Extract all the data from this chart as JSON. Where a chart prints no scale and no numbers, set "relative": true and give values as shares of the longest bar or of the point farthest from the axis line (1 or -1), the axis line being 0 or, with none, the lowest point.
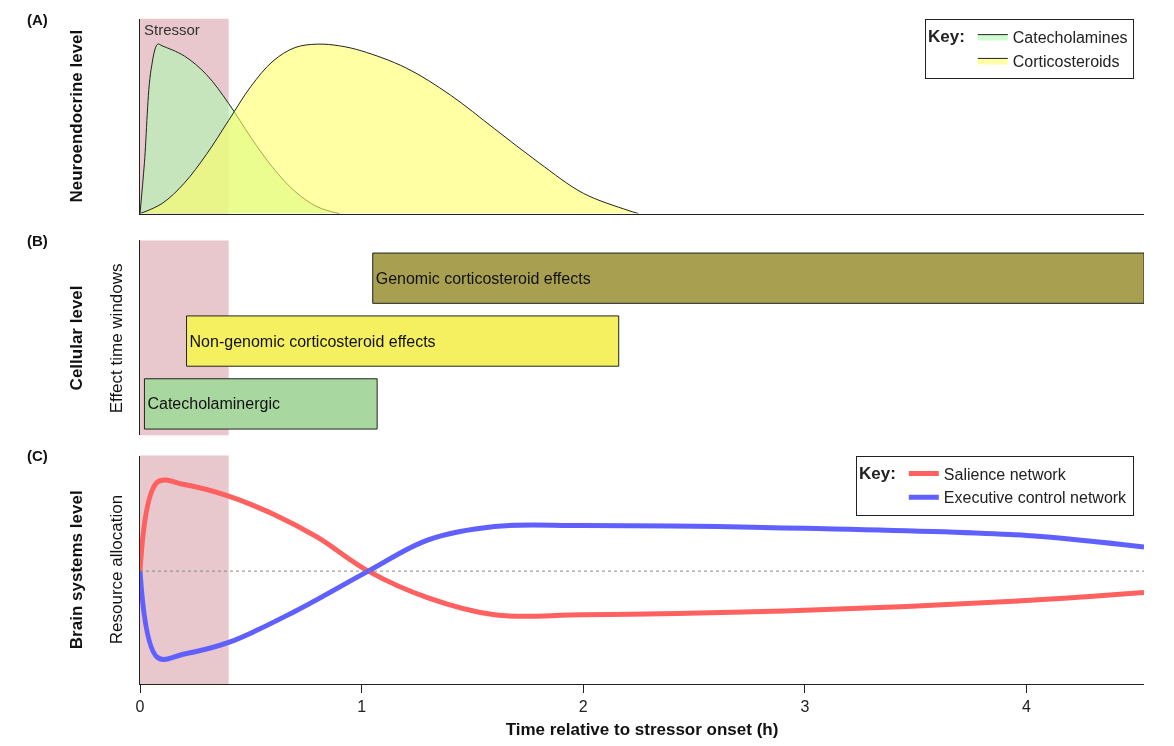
{
  "chart_data": [
    {
      "type": "area",
      "relative": true,
      "ylabel": "Neuroendocrine level",
      "legend_title": "Key:",
      "legend": "top right",
      "tick_labels": false,
      "xlim": [
        0,
        4.53
      ],
      "xticks": [
        0,
        1,
        2,
        3,
        4
      ],
      "annotations": [
        "(A)"
      ],
      "bands": [
        {
          "axis": "x",
          "from": 0,
          "to": 0.4,
          "label": "Stressor",
          "color": "#e8c8cc"
        }
      ],
      "series": [
        {
          "name": "Catecholamines",
          "color": "#b0f8b0",
          "x": [
            0,
            0.02,
            0.05,
            0.08,
            0.1,
            0.2,
            0.3,
            0.4,
            0.5,
            0.6,
            0.7,
            0.8,
            0.9
          ],
          "values": [
            0,
            0.3,
            0.85,
            1.0,
            0.99,
            0.93,
            0.82,
            0.65,
            0.45,
            0.27,
            0.13,
            0.04,
            0
          ]
        },
        {
          "name": "Corticosteroids",
          "color": "#ffff66",
          "x": [
            0,
            0.1,
            0.2,
            0.3,
            0.4,
            0.5,
            0.6,
            0.7,
            0.8,
            0.9,
            1.0,
            1.2,
            1.4,
            1.6,
            1.8,
            2.0,
            2.2,
            2.25
          ],
          "values": [
            0,
            0.06,
            0.18,
            0.35,
            0.55,
            0.75,
            0.9,
            0.98,
            1.0,
            0.99,
            0.96,
            0.86,
            0.7,
            0.5,
            0.3,
            0.12,
            0.02,
            0
          ]
        }
      ]
    },
    {
      "type": "bar",
      "orientation": "horizontal",
      "ylabel": "Cellular level",
      "tick_labels": false,
      "xlim": [
        0,
        4.53
      ],
      "xticks": [
        0,
        1,
        2,
        3,
        4
      ],
      "annotations": [
        "(B)",
        "Effect time windows"
      ],
      "bands": [
        {
          "axis": "x",
          "from": 0,
          "to": 0.4,
          "color": "#e8c8cc"
        }
      ],
      "categories": [
        "Genomic corticosteroid effects",
        "Non-genomic corticosteroid effects",
        "Catecholaminergic"
      ],
      "base": [
        1.05,
        0.21,
        0.02
      ],
      "values": [
        3.48,
        1.95,
        1.05
      ],
      "colors": [
        "#a8a050",
        "#f5f060",
        "#a8d8a0"
      ]
    },
    {
      "type": "line",
      "relative": true,
      "ylabel": "Brain systems level",
      "xlabel": "Time relative to stressor onset (h)",
      "legend_title": "Key:",
      "legend": "top right",
      "tick_labels": "x",
      "xlim": [
        0,
        4.53
      ],
      "xticks": [
        0,
        1,
        2,
        3,
        4
      ],
      "annotations": [
        "(C)",
        "Resource allocation"
      ],
      "bands": [
        {
          "axis": "x",
          "from": 0,
          "to": 0.4,
          "color": "#e8c8cc"
        }
      ],
      "ref_lines": [
        {
          "axis": "y",
          "value": 0,
          "color": "#888888",
          "line_style": "dotted"
        }
      ],
      "series": [
        {
          "name": "Salience network",
          "color": "#ff6060",
          "x": [
            0,
            0.08,
            0.2,
            0.4,
            0.6,
            0.8,
            1.03,
            1.3,
            1.6,
            2,
            3,
            4,
            4.53
          ],
          "values": [
            0,
            1.0,
            0.97,
            0.84,
            0.64,
            0.38,
            0,
            -0.3,
            -0.49,
            -0.49,
            -0.44,
            -0.33,
            -0.24
          ]
        },
        {
          "name": "Executive control network",
          "color": "#6060ff",
          "x": [
            0,
            0.08,
            0.2,
            0.4,
            0.7,
            1.03,
            1.3,
            1.6,
            2,
            3,
            4,
            4.53
          ],
          "values": [
            0,
            -0.97,
            -0.93,
            -0.8,
            -0.45,
            0,
            0.35,
            0.5,
            0.51,
            0.48,
            0.4,
            0.27
          ]
        }
      ]
    }
  ]
}
